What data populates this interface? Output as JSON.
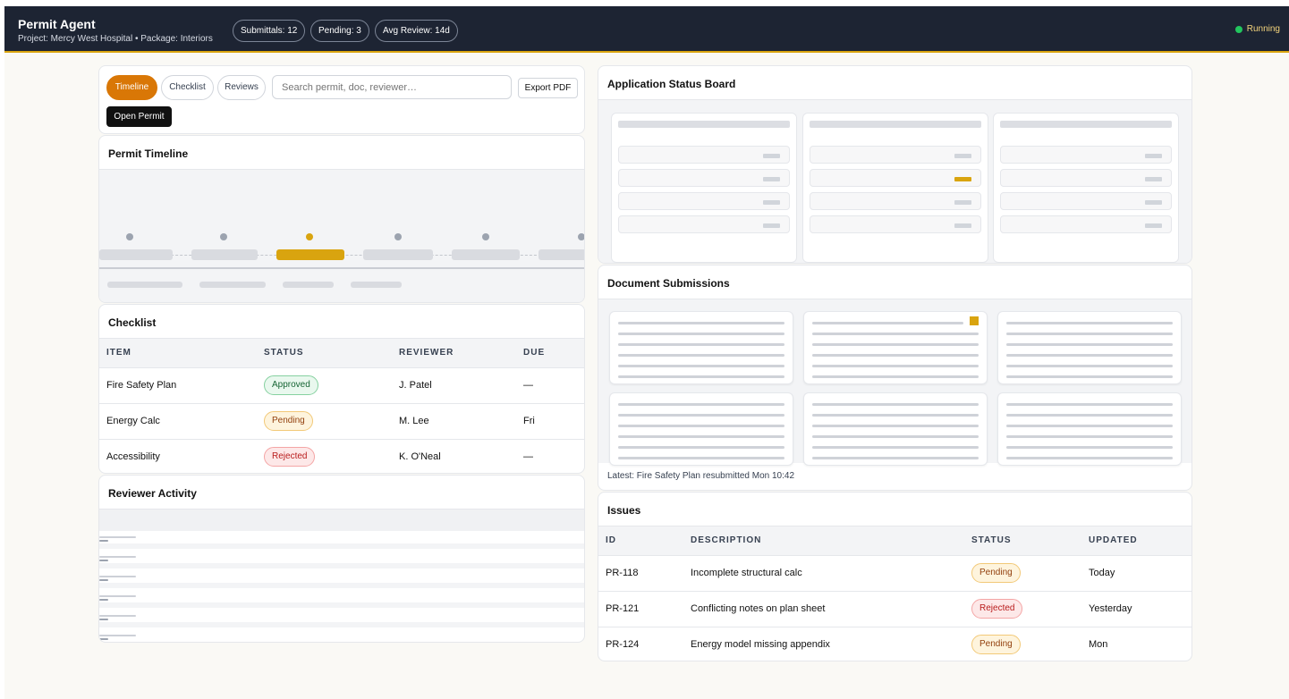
{
  "header": {
    "title": "Permit Agent",
    "subtitle": "Project: Mercy West Hospital • Package: Interiors",
    "stats": [
      "Submittals: 12",
      "Pending: 3",
      "Avg Review: 14d"
    ],
    "status": "Running"
  },
  "toolbar": {
    "tabs": [
      "Timeline",
      "Checklist",
      "Reviews"
    ],
    "active_tab": "Timeline",
    "search_placeholder": "Search permit, doc, reviewer…",
    "export_label": "Export PDF",
    "open_label": "Open Permit"
  },
  "timeline": {
    "title": "Permit Timeline"
  },
  "checklist": {
    "title": "Checklist",
    "columns": [
      "ITEM",
      "STATUS",
      "REVIEWER",
      "DUE"
    ],
    "rows": [
      {
        "item": "Fire Safety Plan",
        "status": "Approved",
        "reviewer": "J. Patel",
        "due": "—"
      },
      {
        "item": "Energy Calc",
        "status": "Pending",
        "reviewer": "M. Lee",
        "due": "Fri"
      },
      {
        "item": "Accessibility",
        "status": "Rejected",
        "reviewer": "K. O'Neal",
        "due": "—"
      }
    ]
  },
  "activity": {
    "title": "Reviewer Activity"
  },
  "board": {
    "title": "Application Status Board"
  },
  "documents": {
    "title": "Document Submissions",
    "latest": "Latest: Fire Safety Plan resubmitted Mon 10:42"
  },
  "issues": {
    "title": "Issues",
    "columns": [
      "ID",
      "DESCRIPTION",
      "STATUS",
      "UPDATED"
    ],
    "rows": [
      {
        "id": "PR-118",
        "description": "Incomplete structural calc",
        "status": "Pending",
        "updated": "Today"
      },
      {
        "id": "PR-121",
        "description": "Conflicting notes on plan sheet",
        "status": "Rejected",
        "updated": "Yesterday"
      },
      {
        "id": "PR-124",
        "description": "Energy model missing appendix",
        "status": "Pending",
        "updated": "Mon"
      }
    ]
  },
  "colors": {
    "accent": "#d97706",
    "highlight": "#d9a40f",
    "header_bg": "#1d2433",
    "running": "#22c55e"
  }
}
